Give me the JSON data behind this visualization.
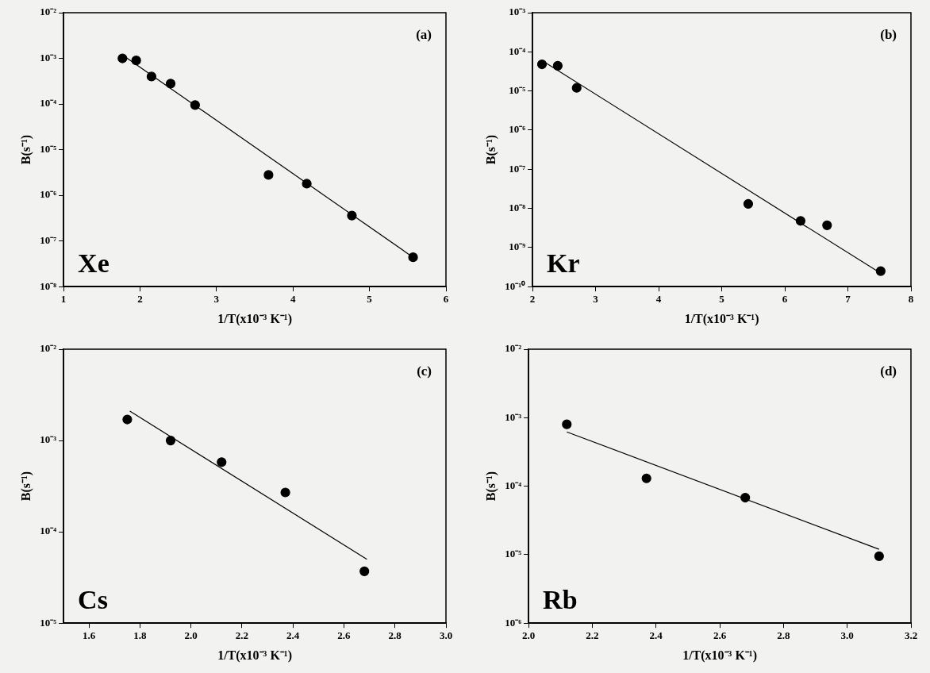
{
  "chart_data": [
    {
      "type": "scatter",
      "xlabel": "1/T(x10⁻³ K⁻¹)",
      "ylabel": "B(s⁻¹)",
      "annotations": [
        "(a)",
        "Xe"
      ],
      "log": "y",
      "grid": false,
      "marker": "circle",
      "xlim": [
        1,
        6
      ],
      "xticks": [
        1,
        2,
        3,
        4,
        5,
        6
      ],
      "ylim": [
        1e-08,
        0.01
      ],
      "yticks": [
        {
          "value": 1e-08,
          "label": "10⁻⁸"
        },
        {
          "value": 1e-07,
          "label": "10⁻⁷"
        },
        {
          "value": 1e-06,
          "label": "10⁻⁶"
        },
        {
          "value": 1e-05,
          "label": "10⁻⁵"
        },
        {
          "value": 0.0001,
          "label": "10⁻⁴"
        },
        {
          "value": 0.001,
          "label": "10⁻³"
        },
        {
          "value": 0.01,
          "label": "10⁻²"
        }
      ],
      "series": [
        {
          "type": "scatter",
          "color": "#000000",
          "x": [
            1.77,
            1.95,
            2.15,
            2.4,
            2.72,
            3.68,
            4.18,
            4.77,
            5.57
          ],
          "values": [
            0.001,
            0.0009,
            0.0004,
            0.00028,
            9.5e-05,
            2.8e-06,
            1.8e-06,
            3.6e-07,
            4.4e-08
          ]
        },
        {
          "type": "line",
          "color": "#000000",
          "marker": "none",
          "x": [
            1.8,
            5.57
          ],
          "values": [
            0.0011,
            4.4e-08
          ]
        }
      ]
    },
    {
      "type": "scatter",
      "xlabel": "1/T(x10⁻³ K⁻¹)",
      "ylabel": "B(s⁻¹)",
      "annotations": [
        "(b)",
        "Kr"
      ],
      "log": "y",
      "grid": false,
      "marker": "circle",
      "xlim": [
        2,
        8
      ],
      "xticks": [
        2,
        3,
        4,
        5,
        6,
        7,
        8
      ],
      "ylim": [
        1e-10,
        0.001
      ],
      "yticks": [
        {
          "value": 1e-10,
          "label": "10⁻¹⁰"
        },
        {
          "value": 1e-09,
          "label": "10⁻⁹"
        },
        {
          "value": 1e-08,
          "label": "10⁻⁸"
        },
        {
          "value": 1e-07,
          "label": "10⁻⁷"
        },
        {
          "value": 1e-06,
          "label": "10⁻⁶"
        },
        {
          "value": 1e-05,
          "label": "10⁻⁵"
        },
        {
          "value": 0.0001,
          "label": "10⁻⁴"
        },
        {
          "value": 0.001,
          "label": "10⁻³"
        }
      ],
      "series": [
        {
          "type": "scatter",
          "color": "#000000",
          "x": [
            2.15,
            2.4,
            2.7,
            5.42,
            6.25,
            6.67,
            7.52
          ],
          "values": [
            4.8e-05,
            4.4e-05,
            1.2e-05,
            1.3e-08,
            4.8e-09,
            3.7e-09,
            2.5e-10
          ]
        },
        {
          "type": "line",
          "color": "#000000",
          "marker": "none",
          "x": [
            2.15,
            7.5
          ],
          "values": [
            6e-05,
            2.3e-10
          ]
        }
      ]
    },
    {
      "type": "scatter",
      "xlabel": "1/T(x10⁻³ K⁻¹)",
      "ylabel": "B(s⁻¹)",
      "annotations": [
        "(c)",
        "Cs"
      ],
      "log": "y",
      "grid": false,
      "marker": "circle",
      "xlim": [
        1.5,
        3.0
      ],
      "xticks": [
        {
          "value": 1.6,
          "label": "1.6"
        },
        {
          "value": 1.8,
          "label": "1.8"
        },
        {
          "value": 2.0,
          "label": "2.0"
        },
        {
          "value": 2.2,
          "label": "2.2"
        },
        {
          "value": 2.4,
          "label": "2.4"
        },
        {
          "value": 2.6,
          "label": "2.6"
        },
        {
          "value": 2.8,
          "label": "2.8"
        },
        {
          "value": 3.0,
          "label": "3.0"
        }
      ],
      "ylim": [
        1e-05,
        0.01
      ],
      "yticks": [
        {
          "value": 1e-05,
          "label": "10⁻⁵"
        },
        {
          "value": 0.0001,
          "label": "10⁻⁴"
        },
        {
          "value": 0.001,
          "label": "10⁻³"
        },
        {
          "value": 0.01,
          "label": "10⁻²"
        }
      ],
      "series": [
        {
          "type": "scatter",
          "color": "#000000",
          "x": [
            1.75,
            1.92,
            2.12,
            2.37,
            2.68
          ],
          "values": [
            0.0017,
            0.001,
            0.00058,
            0.00027,
            3.7e-05
          ]
        },
        {
          "type": "line",
          "color": "#000000",
          "marker": "none",
          "x": [
            1.76,
            2.69
          ],
          "values": [
            0.0021,
            5e-05
          ]
        }
      ]
    },
    {
      "type": "scatter",
      "xlabel": "1/T(x10⁻³ K⁻¹)",
      "ylabel": "B(s⁻¹)",
      "annotations": [
        "(d)",
        "Rb"
      ],
      "log": "y",
      "grid": false,
      "marker": "circle",
      "xlim": [
        2.0,
        3.2
      ],
      "xticks": [
        {
          "value": 2.0,
          "label": "2.0"
        },
        {
          "value": 2.2,
          "label": "2.2"
        },
        {
          "value": 2.4,
          "label": "2.4"
        },
        {
          "value": 2.6,
          "label": "2.6"
        },
        {
          "value": 2.8,
          "label": "2.8"
        },
        {
          "value": 3.0,
          "label": "3.0"
        },
        {
          "value": 3.2,
          "label": "3.2"
        }
      ],
      "ylim": [
        1e-06,
        0.01
      ],
      "yticks": [
        {
          "value": 1e-06,
          "label": "10⁻⁶"
        },
        {
          "value": 1e-05,
          "label": "10⁻⁵"
        },
        {
          "value": 0.0001,
          "label": "10⁻⁴"
        },
        {
          "value": 0.001,
          "label": "10⁻³"
        },
        {
          "value": 0.01,
          "label": "10⁻²"
        }
      ],
      "series": [
        {
          "type": "scatter",
          "color": "#000000",
          "x": [
            2.12,
            2.37,
            2.68,
            3.1
          ],
          "values": [
            0.0008,
            0.00013,
            6.8e-05,
            9.5e-06
          ]
        },
        {
          "type": "line",
          "color": "#000000",
          "marker": "none",
          "x": [
            2.12,
            3.1
          ],
          "values": [
            0.00062,
            1.2e-05
          ]
        }
      ]
    }
  ]
}
